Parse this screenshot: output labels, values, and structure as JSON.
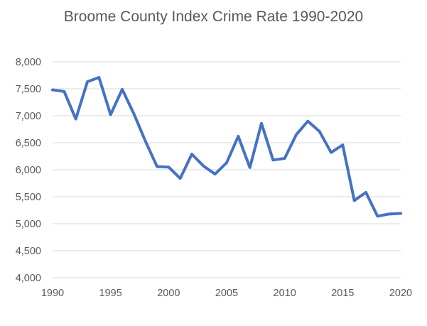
{
  "chart_data": {
    "type": "line",
    "title": "Broome County Index Crime Rate 1990-2020",
    "xlabel": "",
    "ylabel": "",
    "xlim": [
      1990,
      2020
    ],
    "ylim": [
      4000,
      8000
    ],
    "x_ticks": [
      1990,
      1995,
      2000,
      2005,
      2010,
      2015,
      2020
    ],
    "y_ticks": [
      4000,
      4500,
      5000,
      5500,
      6000,
      6500,
      7000,
      7500,
      8000
    ],
    "x_tick_labels": [
      "1990",
      "1995",
      "2000",
      "2005",
      "2010",
      "2015",
      "2020"
    ],
    "y_tick_labels": [
      "4,000",
      "4,500",
      "5,000",
      "5,500",
      "6,000",
      "6,500",
      "7,000",
      "7,500",
      "8,000"
    ],
    "grid": "horizontal",
    "legend": "none",
    "line_color": "#4472C4",
    "series": [
      {
        "x": [
          1990,
          1991,
          1992,
          1993,
          1994,
          1995,
          1996,
          1997,
          1998,
          1999,
          2000,
          2001,
          2002,
          2003,
          2004,
          2005,
          2006,
          2007,
          2008,
          2009,
          2010,
          2011,
          2012,
          2013,
          2014,
          2015,
          2016,
          2017,
          2018,
          2019,
          2020
        ],
        "values": [
          7480,
          7450,
          6940,
          7630,
          7710,
          7020,
          7490,
          7040,
          6530,
          6060,
          6050,
          5840,
          6290,
          6070,
          5920,
          6130,
          6620,
          6040,
          6860,
          6180,
          6210,
          6650,
          6900,
          6710,
          6320,
          6460,
          5430,
          5580,
          5140,
          5180,
          5190
        ]
      }
    ]
  }
}
